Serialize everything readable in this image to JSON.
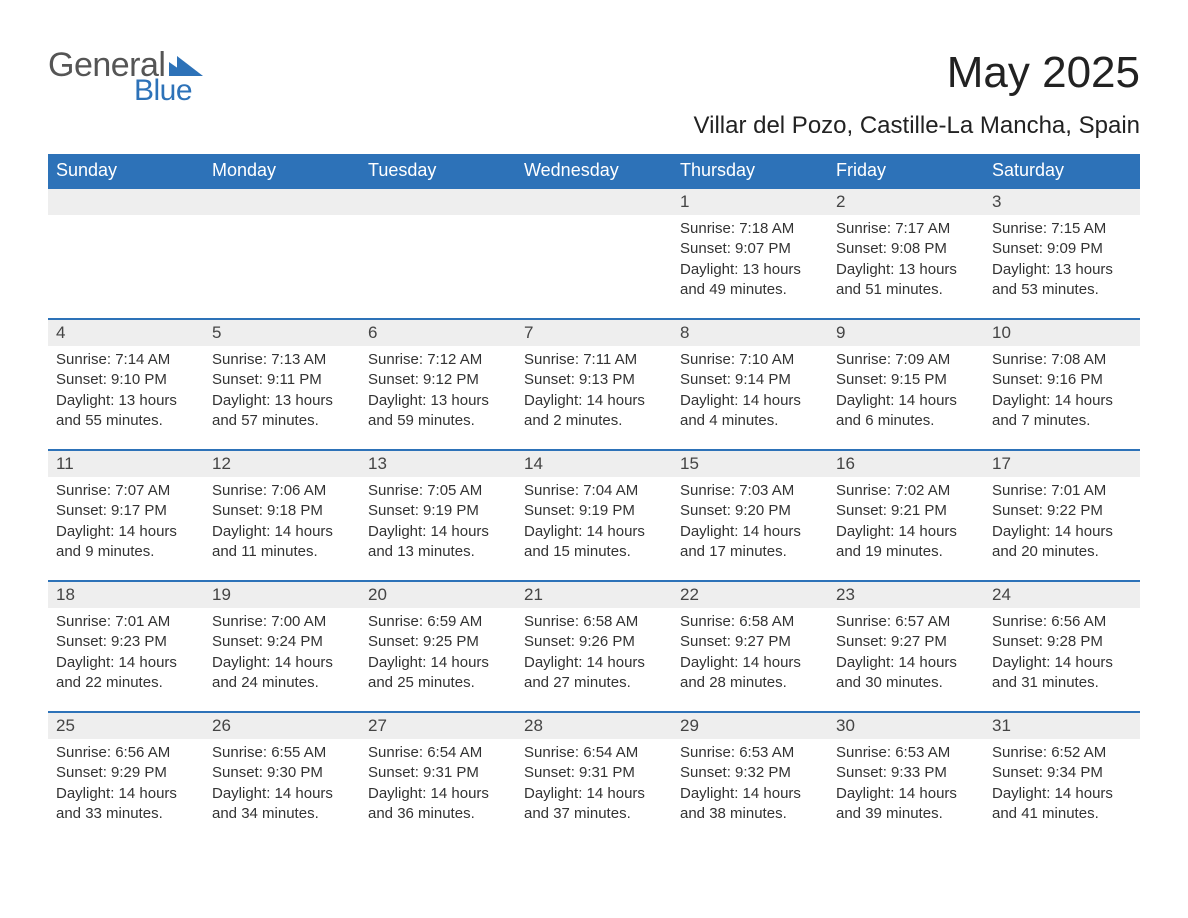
{
  "brand": {
    "part1": "General",
    "part2": "Blue",
    "tri_color": "#2d72b8"
  },
  "header": {
    "title": "May 2025",
    "location": "Villar del Pozo, Castille-La Mancha, Spain"
  },
  "colors": {
    "header_bg": "#2d72b8",
    "header_text": "#ffffff",
    "daynum_bg": "#eeeeee",
    "row_border": "#2d72b8",
    "body_text": "#333333",
    "page_bg": "#ffffff"
  },
  "typography": {
    "title_fontsize": 44,
    "subtitle_fontsize": 24,
    "weekday_fontsize": 18,
    "daynum_fontsize": 17,
    "body_fontsize": 15,
    "font_family": "Arial"
  },
  "calendar": {
    "type": "table",
    "columns": [
      "Sunday",
      "Monday",
      "Tuesday",
      "Wednesday",
      "Thursday",
      "Friday",
      "Saturday"
    ],
    "weeks": [
      [
        null,
        null,
        null,
        null,
        {
          "n": "1",
          "sr": "7:18 AM",
          "ss": "9:07 PM",
          "dl": "13 hours and 49 minutes."
        },
        {
          "n": "2",
          "sr": "7:17 AM",
          "ss": "9:08 PM",
          "dl": "13 hours and 51 minutes."
        },
        {
          "n": "3",
          "sr": "7:15 AM",
          "ss": "9:09 PM",
          "dl": "13 hours and 53 minutes."
        }
      ],
      [
        {
          "n": "4",
          "sr": "7:14 AM",
          "ss": "9:10 PM",
          "dl": "13 hours and 55 minutes."
        },
        {
          "n": "5",
          "sr": "7:13 AM",
          "ss": "9:11 PM",
          "dl": "13 hours and 57 minutes."
        },
        {
          "n": "6",
          "sr": "7:12 AM",
          "ss": "9:12 PM",
          "dl": "13 hours and 59 minutes."
        },
        {
          "n": "7",
          "sr": "7:11 AM",
          "ss": "9:13 PM",
          "dl": "14 hours and 2 minutes."
        },
        {
          "n": "8",
          "sr": "7:10 AM",
          "ss": "9:14 PM",
          "dl": "14 hours and 4 minutes."
        },
        {
          "n": "9",
          "sr": "7:09 AM",
          "ss": "9:15 PM",
          "dl": "14 hours and 6 minutes."
        },
        {
          "n": "10",
          "sr": "7:08 AM",
          "ss": "9:16 PM",
          "dl": "14 hours and 7 minutes."
        }
      ],
      [
        {
          "n": "11",
          "sr": "7:07 AM",
          "ss": "9:17 PM",
          "dl": "14 hours and 9 minutes."
        },
        {
          "n": "12",
          "sr": "7:06 AM",
          "ss": "9:18 PM",
          "dl": "14 hours and 11 minutes."
        },
        {
          "n": "13",
          "sr": "7:05 AM",
          "ss": "9:19 PM",
          "dl": "14 hours and 13 minutes."
        },
        {
          "n": "14",
          "sr": "7:04 AM",
          "ss": "9:19 PM",
          "dl": "14 hours and 15 minutes."
        },
        {
          "n": "15",
          "sr": "7:03 AM",
          "ss": "9:20 PM",
          "dl": "14 hours and 17 minutes."
        },
        {
          "n": "16",
          "sr": "7:02 AM",
          "ss": "9:21 PM",
          "dl": "14 hours and 19 minutes."
        },
        {
          "n": "17",
          "sr": "7:01 AM",
          "ss": "9:22 PM",
          "dl": "14 hours and 20 minutes."
        }
      ],
      [
        {
          "n": "18",
          "sr": "7:01 AM",
          "ss": "9:23 PM",
          "dl": "14 hours and 22 minutes."
        },
        {
          "n": "19",
          "sr": "7:00 AM",
          "ss": "9:24 PM",
          "dl": "14 hours and 24 minutes."
        },
        {
          "n": "20",
          "sr": "6:59 AM",
          "ss": "9:25 PM",
          "dl": "14 hours and 25 minutes."
        },
        {
          "n": "21",
          "sr": "6:58 AM",
          "ss": "9:26 PM",
          "dl": "14 hours and 27 minutes."
        },
        {
          "n": "22",
          "sr": "6:58 AM",
          "ss": "9:27 PM",
          "dl": "14 hours and 28 minutes."
        },
        {
          "n": "23",
          "sr": "6:57 AM",
          "ss": "9:27 PM",
          "dl": "14 hours and 30 minutes."
        },
        {
          "n": "24",
          "sr": "6:56 AM",
          "ss": "9:28 PM",
          "dl": "14 hours and 31 minutes."
        }
      ],
      [
        {
          "n": "25",
          "sr": "6:56 AM",
          "ss": "9:29 PM",
          "dl": "14 hours and 33 minutes."
        },
        {
          "n": "26",
          "sr": "6:55 AM",
          "ss": "9:30 PM",
          "dl": "14 hours and 34 minutes."
        },
        {
          "n": "27",
          "sr": "6:54 AM",
          "ss": "9:31 PM",
          "dl": "14 hours and 36 minutes."
        },
        {
          "n": "28",
          "sr": "6:54 AM",
          "ss": "9:31 PM",
          "dl": "14 hours and 37 minutes."
        },
        {
          "n": "29",
          "sr": "6:53 AM",
          "ss": "9:32 PM",
          "dl": "14 hours and 38 minutes."
        },
        {
          "n": "30",
          "sr": "6:53 AM",
          "ss": "9:33 PM",
          "dl": "14 hours and 39 minutes."
        },
        {
          "n": "31",
          "sr": "6:52 AM",
          "ss": "9:34 PM",
          "dl": "14 hours and 41 minutes."
        }
      ]
    ],
    "labels": {
      "sunrise": "Sunrise:",
      "sunset": "Sunset:",
      "daylight": "Daylight:"
    }
  }
}
